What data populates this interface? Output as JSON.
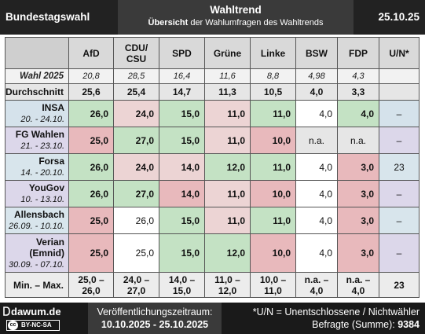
{
  "header": {
    "left": "Bundestagswahl",
    "title": "Wahltrend",
    "subtitle_bold": "Übersicht",
    "subtitle_rest": " der Wahlumfragen des Wahltrends",
    "date": "25.10.25"
  },
  "columns": [
    {
      "line1": "AfD",
      "line2": ""
    },
    {
      "line1": "CDU/",
      "line2": "CSU"
    },
    {
      "line1": "SPD",
      "line2": ""
    },
    {
      "line1": "Grüne",
      "line2": ""
    },
    {
      "line1": "Linke",
      "line2": ""
    },
    {
      "line1": "BSW",
      "line2": ""
    },
    {
      "line1": "FDP",
      "line2": ""
    },
    {
      "line1": "U/N*",
      "line2": ""
    }
  ],
  "wahl": {
    "label": "Wahl 2025",
    "values": [
      "20,8",
      "28,5",
      "16,4",
      "11,6",
      "8,8",
      "4,98",
      "4,3",
      ""
    ]
  },
  "average": {
    "label": "Durchschnitt",
    "values": [
      "25,6",
      "25,4",
      "14,7",
      "11,3",
      "10,5",
      "4,0",
      "3,3",
      ""
    ]
  },
  "institutes": [
    {
      "name": "INSA",
      "date": "20. - 24.10.",
      "values": [
        "26,0",
        "24,0",
        "15,0",
        "11,0",
        "11,0",
        "4,0",
        "4,0",
        "–"
      ]
    },
    {
      "name": "FG Wahlen",
      "date": "21. - 23.10.",
      "values": [
        "25,0",
        "27,0",
        "15,0",
        "11,0",
        "10,0",
        "n.a.",
        "n.a.",
        "–"
      ]
    },
    {
      "name": "Forsa",
      "date": "14. - 20.10.",
      "values": [
        "26,0",
        "24,0",
        "14,0",
        "12,0",
        "11,0",
        "4,0",
        "3,0",
        "23"
      ]
    },
    {
      "name": "YouGov",
      "date": "10. - 13.10.",
      "values": [
        "26,0",
        "27,0",
        "14,0",
        "11,0",
        "10,0",
        "4,0",
        "3,0",
        "–"
      ]
    },
    {
      "name": "Allensbach",
      "date": "26.09. - 10.10.",
      "values": [
        "25,0",
        "26,0",
        "15,0",
        "11,0",
        "11,0",
        "4,0",
        "3,0",
        "–"
      ]
    },
    {
      "name": "Verian",
      "name2": "(Emnid)",
      "date": "30.09. - 07.10.",
      "values": [
        "25,0",
        "25,0",
        "15,0",
        "12,0",
        "10,0",
        "4,0",
        "3,0",
        "–"
      ]
    }
  ],
  "minmax": {
    "label": "Min. – Max.",
    "values": [
      {
        "a": "25,0 –",
        "b": "26,0"
      },
      {
        "a": "24,0 –",
        "b": "27,0"
      },
      {
        "a": "14,0 –",
        "b": "15,0"
      },
      {
        "a": "11,0 –",
        "b": "12,0"
      },
      {
        "a": "10,0 –",
        "b": "11,0"
      },
      {
        "a": "n.a. –",
        "b": "4,0"
      },
      {
        "a": "n.a. –",
        "b": "4,0"
      },
      {
        "a": "23",
        "b": ""
      }
    ]
  },
  "footer": {
    "site": "dawum.de",
    "license": "BY-NC-SA",
    "license_cc": "cc",
    "period_label": "Veröffentlichungszeitraum:",
    "period": "10.10.2025 - 25.10.2025",
    "note": "*U/N = Unentschlossene / Nichtwähler",
    "sum_label": "Befragte (Summe): ",
    "sum_value": "9384"
  },
  "colors": {
    "green": "#c4e2c4",
    "red": "#e8b9bc",
    "pink": "#ecd4d4"
  }
}
